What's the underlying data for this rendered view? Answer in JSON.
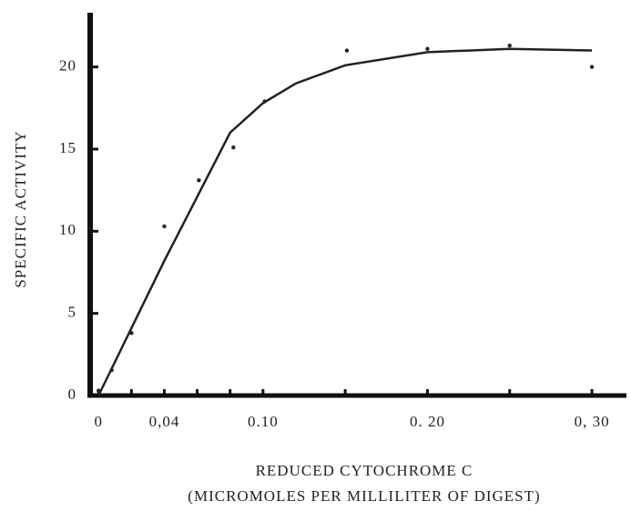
{
  "chart_data": {
    "type": "scatter",
    "ylabel": "SPECIFIC ACTIVITY",
    "xlabel": [
      "REDUCED CYTOCHROME C",
      "(MICROMOLES PER MILLILITER OF DIGEST)"
    ],
    "xlim": [
      -0.004,
      0.321
    ],
    "ylim": [
      0,
      23.3
    ],
    "xticks": [
      0,
      {
        "value": 0.04,
        "label": "0,04"
      },
      {
        "value": 0.1,
        "label": "0.10"
      },
      {
        "value": 0.2,
        "label": "0. 20"
      },
      {
        "value": 0.3,
        "label": "0, 30"
      }
    ],
    "x_minor_ticks": [
      0.02,
      0.06,
      0.08,
      0.15,
      0.25
    ],
    "yticks": [
      0,
      5,
      10,
      15,
      20
    ],
    "series": [
      {
        "style": "points",
        "color": "#222",
        "x": [
          0,
          0.008,
          0.02,
          0.04,
          0.061,
          0.082,
          0.101,
          0.151,
          0.2,
          0.25,
          0.3
        ],
        "values": [
          0.3,
          1.55,
          3.8,
          10.3,
          13.1,
          15.1,
          17.9,
          21.0,
          21.1,
          21.3,
          20.0
        ]
      },
      {
        "style": "line",
        "color": "#222",
        "x": [
          0,
          0.04,
          0.08,
          0.1,
          0.12,
          0.15,
          0.2,
          0.25,
          0.3
        ],
        "values": [
          0,
          8.2,
          16,
          17.8,
          19,
          20.1,
          20.9,
          21.1,
          21
        ]
      }
    ]
  }
}
